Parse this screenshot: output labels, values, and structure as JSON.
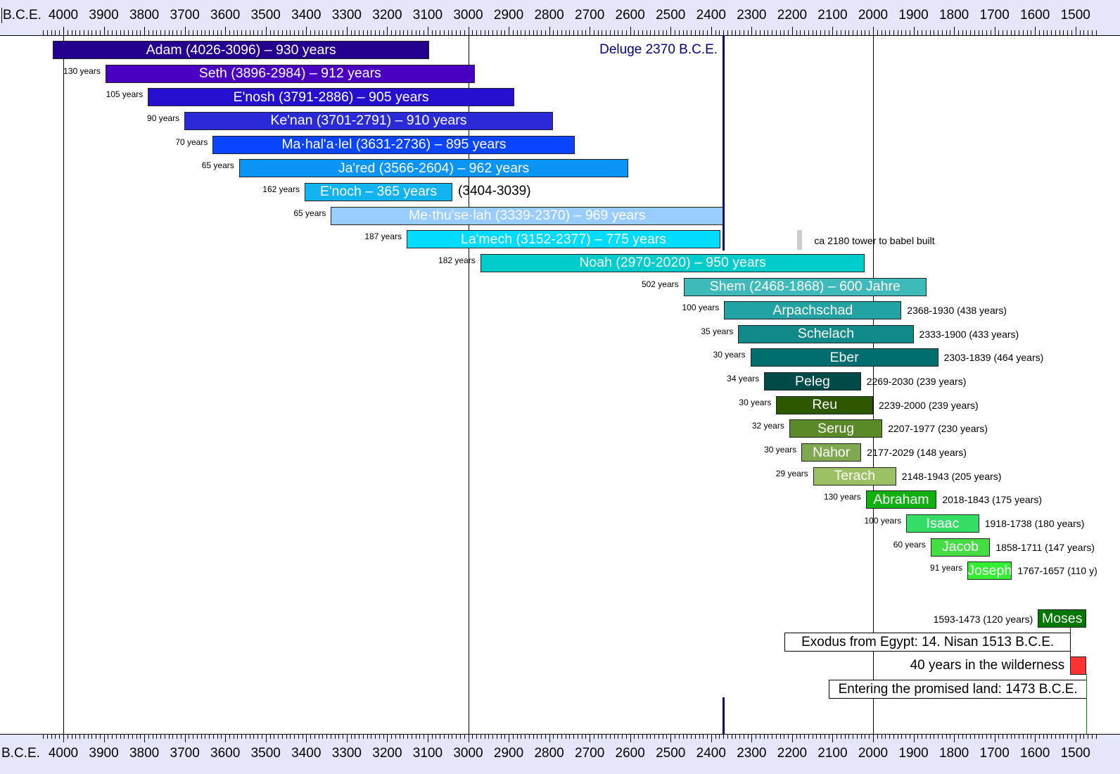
{
  "chart_data": {
    "type": "timeline",
    "axis": {
      "unit_label": "B.C.E.",
      "range": [
        4050,
        1450
      ],
      "ticks": [
        4000,
        3900,
        3800,
        3700,
        3600,
        3500,
        3400,
        3300,
        3200,
        3100,
        3000,
        2900,
        2800,
        2700,
        2600,
        2500,
        2400,
        2300,
        2200,
        2100,
        2000,
        1900,
        1800,
        1700,
        1600,
        1500
      ],
      "reference_lines": [
        4000,
        3000,
        2000
      ]
    },
    "deluge": {
      "label": "Deluge 2370 B.C.E.",
      "year": 2370,
      "color": "#000080"
    },
    "tower": {
      "label": "ca 2180 tower to babel built",
      "year": 2180,
      "color": "#cccccc"
    },
    "series": [
      {
        "name": "Adam",
        "label": "Adam (4026-3096) – 930 years",
        "start": 4026,
        "end": 3096,
        "color": "#24008f",
        "gap": "",
        "right": ""
      },
      {
        "name": "Seth",
        "label": "Seth (3896-2984) – 912 years",
        "start": 3896,
        "end": 2984,
        "color": "#4a00c0",
        "gap": "130 years",
        "right": ""
      },
      {
        "name": "E'nosh",
        "label": "E'nosh (3791-2886) – 905 years",
        "start": 3791,
        "end": 2886,
        "color": "#2610d0",
        "gap": "105 years",
        "right": ""
      },
      {
        "name": "Ke'nan",
        "label": "Ke'nan (3701-2791) – 910 years",
        "start": 3701,
        "end": 2791,
        "color": "#2a2ad8",
        "gap": "90 years",
        "right": ""
      },
      {
        "name": "Ma·hal'a·lel",
        "label": "Ma·hal'a·lel (3631-2736) – 895 years",
        "start": 3631,
        "end": 2736,
        "color": "#0a44ff",
        "gap": "70 years",
        "right": ""
      },
      {
        "name": "Ja'red",
        "label": "Ja'red (3566-2604) – 962 years",
        "start": 3566,
        "end": 2604,
        "color": "#0a94f4",
        "gap": "65 years",
        "right": ""
      },
      {
        "name": "E'noch",
        "label": "E'noch – 365 years",
        "start": 3404,
        "end": 3039,
        "color": "#12b4f0",
        "gap": "162 years",
        "right": "(3404-3039)"
      },
      {
        "name": "Me·thu'se·lah",
        "label": "Me·thu'se·lah (3339-2370) – 969 years",
        "start": 3339,
        "end": 2370,
        "color": "#99ccff",
        "gap": "65 years",
        "right": ""
      },
      {
        "name": "La'mech",
        "label": "La'mech (3152-2377) – 775 years",
        "start": 3152,
        "end": 2377,
        "color": "#00dcfc",
        "gap": "187 years",
        "right": ""
      },
      {
        "name": "Noah",
        "label": "Noah (2970-2020) – 950 years",
        "start": 2970,
        "end": 2020,
        "color": "#00cccc",
        "gap": "182 years",
        "right": ""
      },
      {
        "name": "Shem",
        "label": "Shem (2468-1868) – 600 Jahre",
        "start": 2468,
        "end": 1868,
        "color": "#3fbaba",
        "gap": "502 years",
        "right": ""
      },
      {
        "name": "Arpachschad",
        "label": "Arpachschad",
        "start": 2368,
        "end": 1930,
        "color": "#22a2a2",
        "gap": "100 years",
        "right": "2368-1930 (438 years)"
      },
      {
        "name": "Schelach",
        "label": "Schelach",
        "start": 2333,
        "end": 1900,
        "color": "#118a8a",
        "gap": "35 years",
        "right": "2333-1900 (433 years)"
      },
      {
        "name": "Eber",
        "label": "Eber",
        "start": 2303,
        "end": 1839,
        "color": "#006e6e",
        "gap": "30 years",
        "right": "2303-1839 (464 years)"
      },
      {
        "name": "Peleg",
        "label": "Peleg",
        "start": 2269,
        "end": 2030,
        "color": "#004a48",
        "gap": "34 years",
        "right": "2269-2030 (239 years)"
      },
      {
        "name": "Reu",
        "label": "Reu",
        "start": 2239,
        "end": 2000,
        "color": "#2e5800",
        "gap": "30 years",
        "right": "2239-2000 (239 years)"
      },
      {
        "name": "Serug",
        "label": "Serug",
        "start": 2207,
        "end": 1977,
        "color": "#5a8a28",
        "gap": "32 years",
        "right": "2207-1977 (230 years)"
      },
      {
        "name": "Nahor",
        "label": "Nahor",
        "start": 2177,
        "end": 2029,
        "color": "#80a850",
        "gap": "30 years",
        "right": "2177-2029 (148 years)"
      },
      {
        "name": "Terach",
        "label": "Terach",
        "start": 2148,
        "end": 1943,
        "color": "#9cc064",
        "gap": "29 years",
        "right": "2148-1943 (205 years)"
      },
      {
        "name": "Abraham",
        "label": "Abraham",
        "start": 2018,
        "end": 1843,
        "color": "#10b010",
        "gap": "130 years",
        "right": "2018-1843 (175 years)"
      },
      {
        "name": "Isaac",
        "label": "Isaac",
        "start": 1918,
        "end": 1738,
        "color": "#33dd66",
        "gap": "100 years",
        "right": "1918-1738 (180 years)"
      },
      {
        "name": "Jacob",
        "label": "Jacob",
        "start": 1858,
        "end": 1711,
        "color": "#44dd44",
        "gap": "60 years",
        "right": "1858-1711 (147 years)"
      },
      {
        "name": "Joseph",
        "label": "Joseph",
        "start": 1767,
        "end": 1657,
        "color": "#33ee33",
        "gap": "91 years",
        "right": "1767-1657 (110 y)"
      }
    ],
    "moses": {
      "label": "Moses",
      "start": 1593,
      "end": 1473,
      "color": "#007700",
      "left": "1593-1473 (120 years)"
    },
    "exodus": {
      "label": "Exodus from Egypt: 14. Nisan 1513 B.C.E.",
      "year": 1513
    },
    "wilderness": {
      "label": "40 years in the wilderness",
      "start": 1513,
      "end": 1473,
      "color": "#ff3333"
    },
    "entering": {
      "label": "Entering the promised land: 1473 B.C.E.",
      "year": 1473
    }
  }
}
